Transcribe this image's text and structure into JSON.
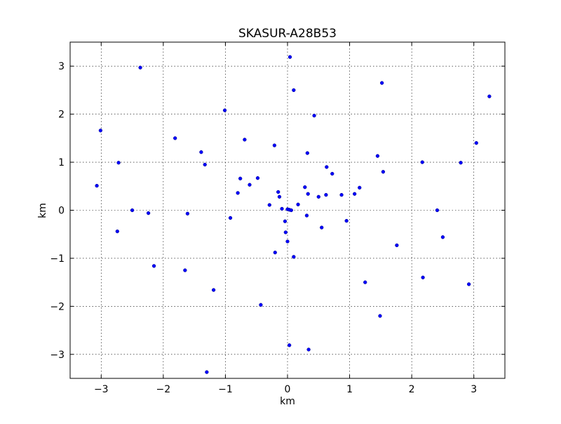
{
  "chart_data": {
    "type": "scatter",
    "title": "SKASUR-A28B53",
    "xlabel": "km",
    "ylabel": "km",
    "xlim": [
      -3.5,
      3.5
    ],
    "ylim": [
      -3.5,
      3.5
    ],
    "xticks": [
      -3,
      -2,
      -1,
      0,
      1,
      2,
      3
    ],
    "yticks": [
      -3,
      -2,
      -1,
      0,
      1,
      2,
      3
    ],
    "xtick_labels": [
      "−3",
      "−2",
      "−1",
      "0",
      "1",
      "2",
      "3"
    ],
    "ytick_labels": [
      "−3",
      "−2",
      "−1",
      "0",
      "1",
      "2",
      "3"
    ],
    "grid": true,
    "marker_color": "#0000ff",
    "points": [
      [
        0.04,
        3.19
      ],
      [
        -2.37,
        2.97
      ],
      [
        1.52,
        2.65
      ],
      [
        0.1,
        2.5
      ],
      [
        3.25,
        2.37
      ],
      [
        -1.01,
        2.08
      ],
      [
        0.43,
        1.97
      ],
      [
        -3.01,
        1.66
      ],
      [
        -1.81,
        1.5
      ],
      [
        -0.69,
        1.47
      ],
      [
        3.04,
        1.4
      ],
      [
        -0.21,
        1.35
      ],
      [
        -1.39,
        1.21
      ],
      [
        0.32,
        1.19
      ],
      [
        1.45,
        1.13
      ],
      [
        2.17,
        1.0
      ],
      [
        -2.72,
        0.99
      ],
      [
        2.79,
        0.99
      ],
      [
        -1.33,
        0.95
      ],
      [
        0.63,
        0.9
      ],
      [
        1.54,
        0.8
      ],
      [
        0.72,
        0.76
      ],
      [
        -0.76,
        0.66
      ],
      [
        -0.48,
        0.67
      ],
      [
        -0.61,
        0.53
      ],
      [
        -3.07,
        0.51
      ],
      [
        1.16,
        0.47
      ],
      [
        0.28,
        0.48
      ],
      [
        -0.8,
        0.36
      ],
      [
        -0.15,
        0.38
      ],
      [
        0.33,
        0.34
      ],
      [
        0.62,
        0.32
      ],
      [
        0.87,
        0.32
      ],
      [
        1.08,
        0.34
      ],
      [
        -0.13,
        0.28
      ],
      [
        0.5,
        0.28
      ],
      [
        -0.29,
        0.11
      ],
      [
        0.17,
        0.12
      ],
      [
        -0.09,
        0.03
      ],
      [
        0.0,
        0.02
      ],
      [
        0.03,
        0.01
      ],
      [
        0.06,
        0.0
      ],
      [
        2.41,
        0.0
      ],
      [
        -2.5,
        0.0
      ],
      [
        -2.24,
        -0.06
      ],
      [
        -1.61,
        -0.07
      ],
      [
        0.31,
        -0.11
      ],
      [
        -0.92,
        -0.16
      ],
      [
        0.95,
        -0.22
      ],
      [
        -0.04,
        -0.23
      ],
      [
        0.55,
        -0.36
      ],
      [
        -2.74,
        -0.44
      ],
      [
        -0.03,
        -0.46
      ],
      [
        2.5,
        -0.56
      ],
      [
        0.0,
        -0.65
      ],
      [
        1.76,
        -0.73
      ],
      [
        -0.2,
        -0.88
      ],
      [
        0.1,
        -0.97
      ],
      [
        -2.15,
        -1.16
      ],
      [
        -1.65,
        -1.25
      ],
      [
        2.18,
        -1.4
      ],
      [
        1.25,
        -1.5
      ],
      [
        2.92,
        -1.54
      ],
      [
        -1.19,
        -1.66
      ],
      [
        -0.43,
        -1.97
      ],
      [
        1.49,
        -2.2
      ],
      [
        0.03,
        -2.81
      ],
      [
        0.34,
        -2.9
      ],
      [
        -1.3,
        -3.37
      ]
    ]
  }
}
